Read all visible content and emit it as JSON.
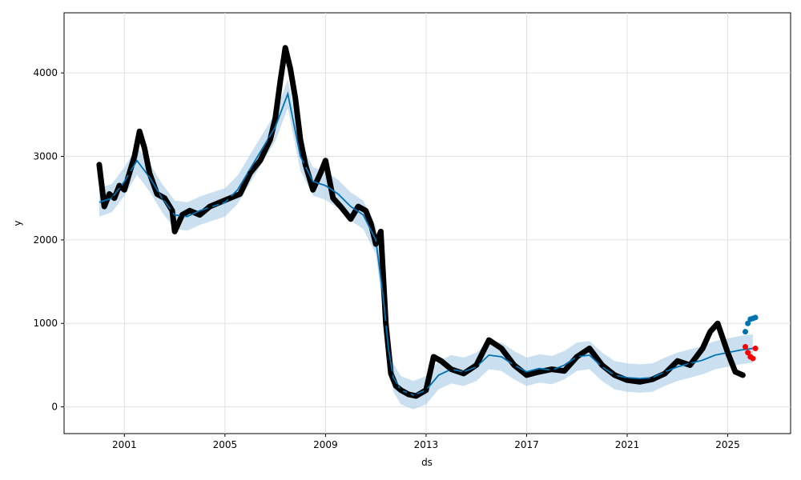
{
  "chart_data": {
    "type": "line",
    "xlabel": "ds",
    "ylabel": "y",
    "xlim": [
      1998.6,
      2027.5
    ],
    "ylim": [
      -320,
      4720
    ],
    "grid": true,
    "x_ticks": [
      2001,
      2005,
      2009,
      2013,
      2017,
      2021,
      2025
    ],
    "x_tick_labels": [
      "2001",
      "2005",
      "2009",
      "2013",
      "2017",
      "2021",
      "2025"
    ],
    "y_ticks": [
      0,
      1000,
      2000,
      3000,
      4000
    ],
    "y_tick_labels": [
      "0",
      "1000",
      "2000",
      "3000",
      "4000"
    ],
    "colors": {
      "observed": "#000000",
      "forecast": "#0072B2",
      "interval": "#a6cce6",
      "holdout": "#ff0000"
    },
    "interval_half_width": 170,
    "series": [
      {
        "role": "forecast",
        "x": [
          2000.0,
          2000.5,
          2001.0,
          2001.5,
          2002.0,
          2002.5,
          2003.0,
          2003.5,
          2004.0,
          2004.5,
          2005.0,
          2005.5,
          2006.0,
          2006.5,
          2007.0,
          2007.5,
          2008.0,
          2008.5,
          2009.0,
          2009.5,
          2010.0,
          2010.5,
          2011.0,
          2011.3,
          2011.5,
          2011.7,
          2012.0,
          2012.5,
          2013.0,
          2013.5,
          2014.0,
          2014.5,
          2015.0,
          2015.5,
          2016.0,
          2016.5,
          2017.0,
          2017.5,
          2018.0,
          2018.5,
          2019.0,
          2019.5,
          2020.0,
          2020.5,
          2021.0,
          2021.5,
          2022.0,
          2022.5,
          2023.0,
          2023.5,
          2024.0,
          2024.5,
          2025.0,
          2025.5,
          2026.0
        ],
        "y": [
          2450,
          2500,
          2700,
          2950,
          2750,
          2500,
          2300,
          2280,
          2350,
          2400,
          2450,
          2600,
          2850,
          3100,
          3350,
          3750,
          3000,
          2700,
          2650,
          2550,
          2400,
          2300,
          2000,
          1300,
          700,
          350,
          200,
          140,
          200,
          380,
          450,
          420,
          480,
          620,
          600,
          500,
          420,
          460,
          440,
          500,
          600,
          620,
          480,
          380,
          350,
          340,
          350,
          420,
          480,
          520,
          560,
          620,
          650,
          680,
          700
        ]
      },
      {
        "role": "observed",
        "x": [
          2000.0,
          2000.2,
          2000.4,
          2000.6,
          2000.8,
          2001.0,
          2001.2,
          2001.4,
          2001.6,
          2001.8,
          2002.0,
          2002.3,
          2002.6,
          2002.9,
          2003.0,
          2003.3,
          2003.6,
          2004.0,
          2004.4,
          2004.8,
          2005.2,
          2005.6,
          2006.0,
          2006.4,
          2006.8,
          2007.0,
          2007.2,
          2007.4,
          2007.6,
          2007.8,
          2008.0,
          2008.2,
          2008.5,
          2008.8,
          2009.0,
          2009.3,
          2009.6,
          2010.0,
          2010.3,
          2010.6,
          2010.8,
          2011.0,
          2011.2,
          2011.4,
          2011.6,
          2011.8,
          2012.0,
          2012.3,
          2012.6,
          2013.0,
          2013.3,
          2013.6,
          2014.0,
          2014.5,
          2015.0,
          2015.5,
          2016.0,
          2016.5,
          2017.0,
          2017.5,
          2018.0,
          2018.5,
          2019.0,
          2019.5,
          2020.0,
          2020.5,
          2021.0,
          2021.5,
          2022.0,
          2022.5,
          2023.0,
          2023.5,
          2024.0,
          2024.3,
          2024.6,
          2025.0,
          2025.3,
          2025.6
        ],
        "y": [
          2900,
          2400,
          2550,
          2500,
          2650,
          2600,
          2800,
          3000,
          3300,
          3100,
          2800,
          2550,
          2500,
          2350,
          2100,
          2300,
          2350,
          2300,
          2400,
          2450,
          2500,
          2550,
          2800,
          2950,
          3200,
          3450,
          3900,
          4300,
          4050,
          3700,
          3200,
          2900,
          2600,
          2800,
          2950,
          2500,
          2400,
          2250,
          2400,
          2350,
          2200,
          1950,
          2100,
          1000,
          400,
          250,
          200,
          150,
          130,
          200,
          600,
          550,
          450,
          400,
          500,
          800,
          700,
          500,
          380,
          420,
          450,
          430,
          600,
          700,
          500,
          380,
          320,
          300,
          330,
          400,
          550,
          500,
          700,
          900,
          1000,
          650,
          420,
          380
        ]
      },
      {
        "role": "future_forecast",
        "x": [
          2025.7,
          2025.8,
          2025.9,
          2026.0,
          2026.1
        ],
        "y": [
          900,
          1000,
          1050,
          1060,
          1070
        ]
      },
      {
        "role": "holdout",
        "x": [
          2025.7,
          2025.8,
          2025.9,
          2026.0,
          2026.1
        ],
        "y": [
          720,
          650,
          600,
          580,
          700
        ]
      }
    ]
  }
}
